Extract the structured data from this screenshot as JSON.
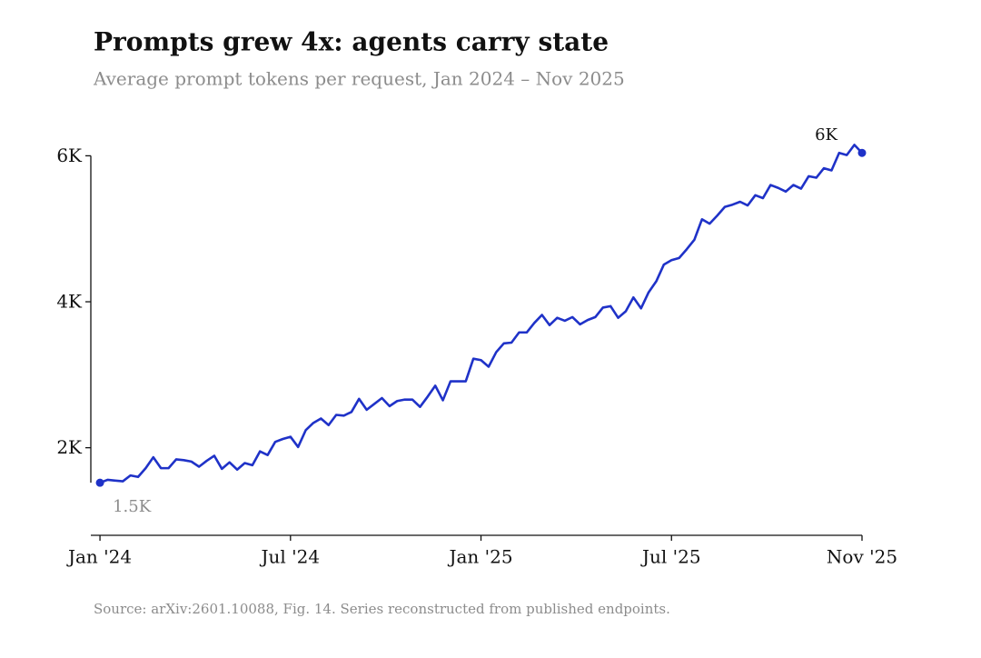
{
  "chart_data": {
    "type": "line",
    "title": "Prompts grew 4x: agents carry state",
    "subtitle": "Average prompt tokens per request, Jan 2024 – Nov 2025",
    "source": "Source: arXiv:2601.10088, Fig. 14. Series reconstructed from published endpoints.",
    "color": "#1f32c8",
    "x": [
      0,
      1,
      2,
      3,
      4,
      5,
      6,
      7,
      8,
      9,
      10,
      11,
      12,
      13,
      14,
      15,
      16,
      17,
      18,
      19,
      20,
      21,
      22,
      23,
      24,
      25,
      26,
      27,
      28,
      29,
      30,
      31,
      32,
      33,
      34,
      35,
      36,
      37,
      38,
      39,
      40,
      41,
      42,
      43,
      44,
      45,
      46,
      47,
      48,
      49,
      50,
      51,
      52,
      53,
      54,
      55,
      56,
      57,
      58,
      59,
      60,
      61,
      62,
      63,
      64,
      65,
      66,
      67,
      68,
      69,
      70,
      71,
      72,
      73,
      74,
      75,
      76,
      77,
      78,
      79,
      80,
      81,
      82,
      83,
      84,
      85,
      86,
      87,
      88,
      89,
      90,
      91,
      92,
      93,
      94,
      95,
      96,
      97,
      98,
      99,
      100
    ],
    "values": [
      1520,
      1560,
      1550,
      1540,
      1620,
      1600,
      1720,
      1870,
      1720,
      1720,
      1840,
      1830,
      1810,
      1740,
      1820,
      1890,
      1710,
      1800,
      1700,
      1790,
      1760,
      1950,
      1900,
      2080,
      2120,
      2150,
      2010,
      2240,
      2340,
      2400,
      2310,
      2450,
      2440,
      2490,
      2670,
      2520,
      2600,
      2680,
      2570,
      2640,
      2660,
      2660,
      2560,
      2700,
      2850,
      2650,
      2910,
      2910,
      2910,
      3220,
      3200,
      3110,
      3310,
      3430,
      3440,
      3580,
      3580,
      3710,
      3820,
      3680,
      3780,
      3740,
      3790,
      3690,
      3750,
      3790,
      3920,
      3940,
      3780,
      3870,
      4060,
      3910,
      4130,
      4280,
      4510,
      4570,
      4600,
      4720,
      4850,
      5130,
      5070,
      5180,
      5300,
      5330,
      5370,
      5320,
      5460,
      5420,
      5600,
      5560,
      5510,
      5600,
      5550,
      5720,
      5700,
      5830,
      5800,
      6040,
      6010,
      6150,
      6040
    ],
    "value_labels": [
      "1.5K",
      null,
      null,
      null,
      null,
      null,
      null,
      null,
      null,
      null,
      null,
      null,
      null,
      null,
      null,
      null,
      null,
      null,
      null,
      null,
      null,
      null,
      null,
      null,
      null,
      null,
      null,
      null,
      null,
      null,
      null,
      null,
      null,
      null,
      null,
      null,
      null,
      null,
      null,
      null,
      null,
      null,
      null,
      null,
      null,
      null,
      null,
      null,
      null,
      null,
      null,
      null,
      null,
      null,
      null,
      null,
      null,
      null,
      null,
      null,
      null,
      null,
      null,
      null,
      null,
      null,
      null,
      null,
      null,
      null,
      null,
      null,
      null,
      null,
      null,
      null,
      null,
      null,
      null,
      null,
      null,
      null,
      null,
      null,
      null,
      null,
      null,
      null,
      null,
      null,
      null,
      null,
      null,
      null,
      null,
      null,
      null,
      null,
      null,
      null,
      "6K"
    ],
    "xlim": [
      -1.2,
      100
    ],
    "xticks": [
      {
        "value": 0,
        "label": "Jan '24"
      },
      {
        "value": 25,
        "label": "Jul '24"
      },
      {
        "value": 50,
        "label": "Jan '25"
      },
      {
        "value": 75,
        "label": "Jul '25"
      },
      {
        "value": 100,
        "label": "Nov '25"
      }
    ],
    "ylim": [
      800,
      6400
    ],
    "yticks": [
      {
        "value": 2000,
        "label": "2K"
      },
      {
        "value": 4000,
        "label": "4K"
      },
      {
        "value": 6000,
        "label": "6K"
      }
    ]
  }
}
